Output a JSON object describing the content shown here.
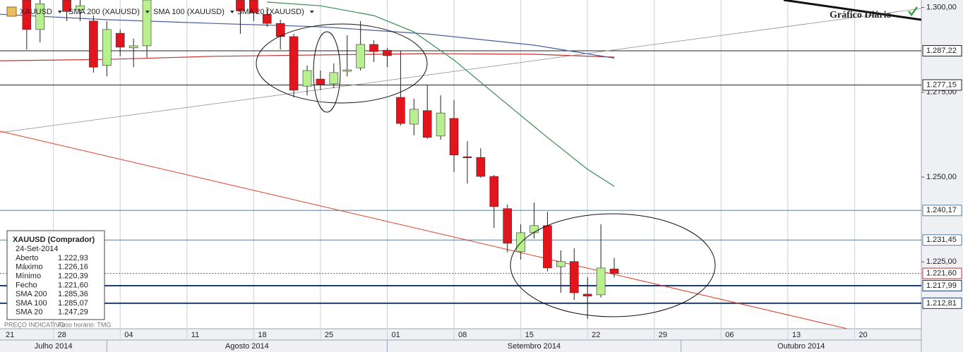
{
  "chart_data": {
    "type": "candlestick",
    "title": "Gráfico Diário",
    "footer_left": "PREÇO INDICATIVO",
    "footer_right": "Fuso horário: TMG",
    "xlim": [
      "2014-07-22",
      "2014-10-27"
    ],
    "xticks": [
      {
        "value": "2014-07-21",
        "label": "21"
      },
      {
        "value": "2014-07-28",
        "label": "28"
      },
      {
        "value": "2014-08-04",
        "label": "04"
      },
      {
        "value": "2014-08-11",
        "label": "11"
      },
      {
        "value": "2014-08-18",
        "label": "18"
      },
      {
        "value": "2014-08-25",
        "label": "25"
      },
      {
        "value": "2014-09-01",
        "label": "01"
      },
      {
        "value": "2014-09-08",
        "label": "08"
      },
      {
        "value": "2014-09-15",
        "label": "15"
      },
      {
        "value": "2014-09-22",
        "label": "22"
      },
      {
        "value": "2014-09-29",
        "label": "29"
      },
      {
        "value": "2014-10-06",
        "label": "06"
      },
      {
        "value": "2014-10-13",
        "label": "13"
      },
      {
        "value": "2014-10-20",
        "label": "20"
      }
    ],
    "months": [
      {
        "start": "2014-07-01",
        "label": "Julho 2014"
      },
      {
        "start": "2014-08-01",
        "label": "Agosto 2014"
      },
      {
        "start": "2014-09-01",
        "label": "Setembro 2014"
      },
      {
        "start": "2014-10-01",
        "label": "Outubro 2014"
      }
    ],
    "ylim": [
      1.2053,
      1.3022
    ],
    "yticks": [
      {
        "value": 1.3,
        "label": "1.300,00"
      },
      {
        "value": 1.275,
        "label": "1.275,00"
      },
      {
        "value": 1.25,
        "label": "1.250,00"
      },
      {
        "value": 1.225,
        "label": "1.225,00"
      }
    ],
    "price_lines": [
      {
        "value": 1.28722,
        "label": "1.287,22",
        "color": "#222222",
        "width": 1
      },
      {
        "value": 1.27715,
        "label": "1.277,15",
        "color": "#222222",
        "width": 1
      },
      {
        "value": 1.24017,
        "label": "1.240,17",
        "color": "#5a7f9e",
        "width": 1
      },
      {
        "value": 1.23145,
        "label": "1.231,45",
        "color": "#5a7f9e",
        "width": 1
      },
      {
        "value": 1.2216,
        "label": "1.221,60",
        "color": "#c83232",
        "width": 1,
        "dash": true
      },
      {
        "value": 1.21799,
        "label": "1.217,99",
        "color": "#1f3c78",
        "width": 2
      },
      {
        "value": 1.21281,
        "label": "1.212,81",
        "color": "#1f3c78",
        "width": 2
      }
    ],
    "candles": {
      "name": "XAUUSD",
      "up_color": "#b8f090",
      "down_color": "#e3141c",
      "x": [
        "2014-07-24",
        "2014-07-25",
        "2014-07-29",
        "2014-07-30",
        "2014-07-31",
        "2014-08-01",
        "2014-08-04",
        "2014-08-05",
        "2014-08-06",
        "2014-08-15",
        "2014-08-18",
        "2014-08-19",
        "2014-08-20",
        "2014-08-21",
        "2014-08-22",
        "2014-08-25",
        "2014-08-26",
        "2014-08-27",
        "2014-08-28",
        "2014-08-29",
        "2014-09-01",
        "2014-09-02",
        "2014-09-03",
        "2014-09-04",
        "2014-09-05",
        "2014-09-08",
        "2014-09-09",
        "2014-09-10",
        "2014-09-11",
        "2014-09-12",
        "2014-09-15",
        "2014-09-16",
        "2014-09-17",
        "2014-09-18",
        "2014-09-19",
        "2014-09-22",
        "2014-09-23",
        "2014-09-24"
      ],
      "open": [
        1.3022,
        1.2935,
        1.3022,
        1.2993,
        1.296,
        1.2829,
        1.2924,
        1.2881,
        1.2887,
        1.3022,
        1.3022,
        1.298,
        1.2953,
        1.2914,
        1.2768,
        1.2789,
        1.2775,
        1.2812,
        1.2822,
        1.2891,
        1.2874,
        1.2735,
        1.2656,
        1.2696,
        1.2621,
        1.2673,
        1.256,
        1.2558,
        1.2502,
        1.2407,
        1.228,
        1.2336,
        1.2357,
        1.2236,
        1.2251,
        1.2155,
        1.2153,
        1.22293
      ],
      "high": [
        1.3022,
        1.3022,
        1.3022,
        1.3022,
        1.2976,
        1.296,
        1.2935,
        1.2908,
        1.3022,
        1.3022,
        1.3022,
        1.3001,
        1.2964,
        1.2922,
        1.2829,
        1.2814,
        1.2835,
        1.2918,
        1.296,
        1.2903,
        1.2881,
        1.2872,
        1.2731,
        1.2772,
        1.2741,
        1.2727,
        1.2606,
        1.2585,
        1.2506,
        1.2419,
        1.2361,
        1.2425,
        1.2398,
        1.2284,
        1.229,
        1.2205,
        1.2361,
        1.22616
      ],
      "low": [
        1.2876,
        1.2897,
        1.296,
        1.296,
        1.2808,
        1.2797,
        1.2856,
        1.2824,
        1.2852,
        1.2922,
        1.296,
        1.2943,
        1.2876,
        1.2735,
        1.2741,
        1.2756,
        1.2762,
        1.2797,
        1.2814,
        1.2839,
        1.2824,
        1.2652,
        1.2623,
        1.2612,
        1.261,
        1.2515,
        1.2481,
        1.2498,
        1.235,
        1.2278,
        1.2257,
        1.2319,
        1.2222,
        1.2159,
        1.2138,
        1.2082,
        1.2145,
        1.22039
      ],
      "close": [
        1.2935,
        1.3011,
        1.2988,
        1.3005,
        1.2824,
        1.2935,
        1.2883,
        1.2887,
        1.3022,
        1.299,
        1.2984,
        1.2953,
        1.2914,
        1.2756,
        1.2814,
        1.2772,
        1.2808,
        1.2816,
        1.2891,
        1.287,
        1.2858,
        1.2658,
        1.27,
        1.2617,
        1.2689,
        1.2565,
        1.2558,
        1.2502,
        1.2413,
        1.2305,
        1.2336,
        1.2357,
        1.2232,
        1.2251,
        1.2159,
        1.2149,
        1.2232,
        1.2216
      ]
    },
    "series": [
      {
        "name": "SMA 200 (XAUUSD)",
        "color": "#c83232",
        "x": [
          "2014-07-22",
          "2014-08-01",
          "2014-08-13",
          "2014-08-25",
          "2014-09-04",
          "2014-09-16",
          "2014-09-24"
        ],
        "values": [
          1.2843,
          1.2847,
          1.2856,
          1.286,
          1.2864,
          1.2862,
          1.28536
        ]
      },
      {
        "name": "SMA 100 (XAUUSD)",
        "color": "#4a5f9a",
        "x": [
          "2014-07-22",
          "2014-08-01",
          "2014-08-13",
          "2014-08-25",
          "2014-09-04",
          "2014-09-16",
          "2014-09-24"
        ],
        "values": [
          1.298,
          1.2964,
          1.2953,
          1.2943,
          1.2922,
          1.2889,
          1.28507
        ]
      },
      {
        "name": "SMA 20 (XAUUSD)",
        "color": "#3c8a50",
        "x": [
          "2014-08-19",
          "2014-08-25",
          "2014-08-29",
          "2014-09-03",
          "2014-09-08",
          "2014-09-12",
          "2014-09-17",
          "2014-09-22",
          "2014-09-24"
        ],
        "values": [
          1.3016,
          1.3005,
          1.2976,
          1.2928,
          1.2845,
          1.2714,
          1.2617,
          1.2523,
          1.24729
        ]
      }
    ],
    "info_box": {
      "title": "XAUUSD (Comprador)",
      "date": "24-Set-2014",
      "rows": [
        {
          "label": "Aberto",
          "value": "1.222,93",
          "color": "#222222"
        },
        {
          "label": "Máximo",
          "value": "1.226,16",
          "color": "#222222"
        },
        {
          "label": "Mínimo",
          "value": "1.220,39",
          "color": "#222222"
        },
        {
          "label": "Fecho",
          "value": "1.221,60",
          "color": "#222222"
        },
        {
          "label": "SMA 200",
          "value": "1.285,36",
          "color": "#c83232"
        },
        {
          "label": "SMA 100",
          "value": "1.285,07",
          "color": "#4a5f9a"
        },
        {
          "label": "SMA 20",
          "value": "1.247,29",
          "color": "#3c8a50"
        }
      ]
    }
  }
}
